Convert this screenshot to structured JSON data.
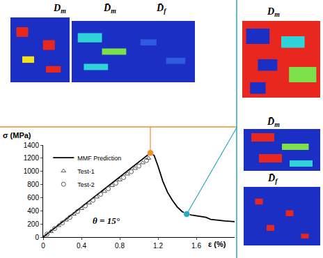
{
  "chart_data": {
    "type": "line",
    "x_label": "ε (%)",
    "y_label": "σ (MPa)",
    "xlim": [
      0,
      2
    ],
    "xticks": [
      0,
      0.4,
      0.8,
      1.2,
      1.6
    ],
    "ylim": [
      0,
      1400
    ],
    "yticks": [
      0,
      200,
      400,
      600,
      800,
      1000,
      1200,
      1400
    ],
    "grid": false,
    "legend": "upper left",
    "annotations": [
      "θ = 15°"
    ],
    "series": [
      {
        "name": "MMF Prediction",
        "type": "line",
        "color": "#000000",
        "line_style": "solid",
        "x": [
          0,
          1.12,
          1.16,
          1.2,
          1.25,
          1.3,
          1.35,
          1.4,
          1.45,
          1.5,
          1.55,
          1.6,
          1.65,
          1.7,
          1.75,
          1.8,
          1.85,
          1.9,
          1.95,
          2.0
        ],
        "values": [
          0,
          1280,
          1240,
          1080,
          850,
          680,
          560,
          460,
          390,
          350,
          335,
          325,
          315,
          300,
          270,
          260,
          250,
          245,
          240,
          235
        ]
      },
      {
        "name": "Test-1",
        "type": "scatter",
        "color": "#555555",
        "marker": "triangle-up-open",
        "x": [
          0,
          0.08,
          0.16,
          0.24,
          0.32,
          0.4,
          0.48,
          0.56,
          0.64,
          0.72,
          0.8,
          0.88,
          0.96,
          1.04,
          1.1
        ],
        "values": [
          0,
          85,
          175,
          260,
          350,
          435,
          520,
          610,
          695,
          785,
          870,
          960,
          1045,
          1130,
          1200
        ]
      },
      {
        "name": "Test-2",
        "type": "scatter",
        "color": "#555555",
        "marker": "circle-open",
        "x": [
          0.04,
          0.12,
          0.2,
          0.28,
          0.36,
          0.44,
          0.52,
          0.6,
          0.68,
          0.76,
          0.84,
          0.92,
          1.0,
          1.08
        ],
        "values": [
          45,
          130,
          215,
          300,
          390,
          475,
          560,
          650,
          735,
          820,
          905,
          995,
          1080,
          1165
        ]
      }
    ],
    "points": [
      {
        "x": 1.12,
        "y": 1280,
        "color": "#f0902a"
      },
      {
        "x": 1.5,
        "y": 350,
        "color": "#2aa9b8"
      }
    ]
  },
  "panels": {
    "top": [
      {
        "label": "D",
        "subscript": "m"
      },
      {
        "label": "D̄",
        "subscript": "m"
      },
      {
        "label": "D̄",
        "subscript": "f"
      }
    ],
    "right": [
      {
        "label": "D",
        "subscript": "m"
      },
      {
        "label": "D̄",
        "subscript": "m"
      },
      {
        "label": "D̄",
        "subscript": "f"
      }
    ]
  }
}
